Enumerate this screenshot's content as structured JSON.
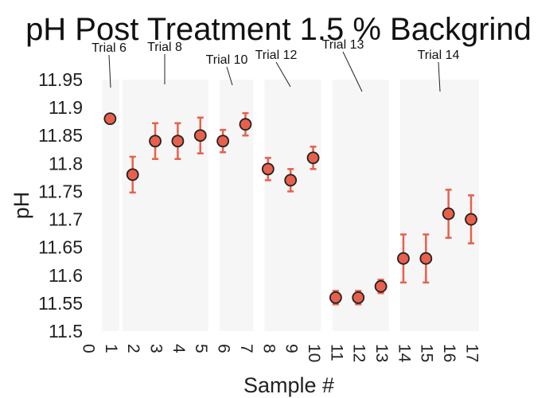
{
  "chart_data": {
    "type": "scatter",
    "title": "pH Post Treatment 1.5 % Backgrind",
    "xlabel": "Sample #",
    "ylabel": "pH",
    "xlim": [
      0,
      17
    ],
    "ylim": [
      11.5,
      11.95
    ],
    "x_ticks": [
      "0",
      "1",
      "2",
      "3",
      "4",
      "5",
      "6",
      "7",
      "8",
      "9",
      "10",
      "11",
      "12",
      "13",
      "14",
      "15",
      "16",
      "17"
    ],
    "y_ticks": [
      "11.5",
      "11.55",
      "11.6",
      "11.65",
      "11.7",
      "11.75",
      "11.8",
      "11.85",
      "11.9",
      "11.95"
    ],
    "grid": false,
    "colors": {
      "marker": "#e8604c",
      "error_bar": "#e8604c",
      "marker_edge": "#222222",
      "band": "#f6f6f6"
    },
    "series": [
      {
        "x": [
          1,
          2,
          3,
          4,
          5,
          6,
          7,
          8,
          9,
          10,
          11,
          12,
          13,
          14,
          15,
          16,
          17
        ],
        "y": [
          11.88,
          11.78,
          11.84,
          11.84,
          11.85,
          11.84,
          11.87,
          11.79,
          11.77,
          11.81,
          11.56,
          11.56,
          11.58,
          11.63,
          11.63,
          11.71,
          11.7
        ],
        "error": [
          0,
          0.032,
          0.032,
          0.032,
          0.032,
          0.02,
          0.02,
          0.02,
          0.02,
          0.02,
          0.012,
          0.012,
          0.012,
          0.043,
          0.043,
          0.043,
          0.043
        ]
      }
    ],
    "trial_bands": [
      {
        "x0": 0.65,
        "x1": 1.4
      },
      {
        "x0": 1.55,
        "x1": 5.35
      },
      {
        "x0": 5.85,
        "x1": 7.35
      },
      {
        "x0": 7.85,
        "x1": 10.35
      },
      {
        "x0": 10.85,
        "x1": 13.35
      },
      {
        "x0": 13.85,
        "x1": 17.35
      }
    ],
    "annotations": [
      {
        "text": "Trial 6",
        "x": 1.05,
        "y": 11.93
      },
      {
        "text": "Trial 8",
        "x": 3.5,
        "y": 11.935
      },
      {
        "text": "Trial 10",
        "x": 6.5,
        "y": 11.932
      },
      {
        "text": "Trial 12",
        "x": 9.0,
        "y": 11.93
      },
      {
        "text": "Trial 13",
        "x": 12.1,
        "y": 11.925
      },
      {
        "text": "Trial 14",
        "x": 15.5,
        "y": 11.925
      }
    ]
  }
}
